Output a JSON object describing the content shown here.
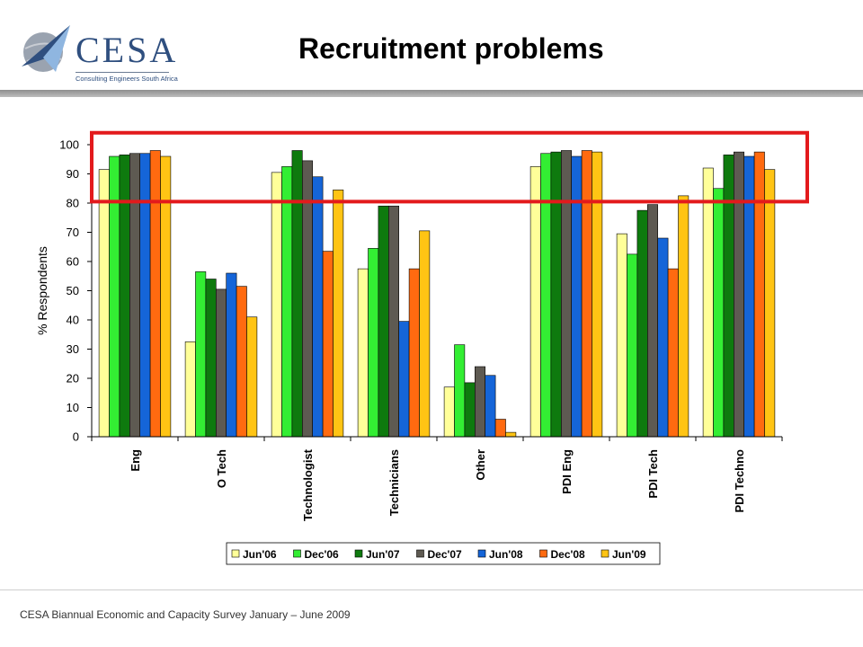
{
  "header": {
    "logo_text": "CESA",
    "logo_subtitle": "Consulting Engineers South Africa",
    "title": "Recruitment problems"
  },
  "footer": {
    "text": "CESA Biannual Economic and Capacity Survey January – June 2009"
  },
  "chart_data": {
    "type": "bar",
    "title": "",
    "xlabel": "",
    "ylabel": "% Respondents",
    "ylim": [
      0,
      100
    ],
    "yticks": [
      0,
      10,
      20,
      30,
      40,
      50,
      60,
      70,
      80,
      90,
      100
    ],
    "grid": false,
    "legend_position": "bottom",
    "categories": [
      "Eng",
      "O Tech",
      "Technologist",
      "Technicians",
      "Other",
      "PDI Eng",
      "PDI Tech",
      "PDI Techno"
    ],
    "series": [
      {
        "name": "Jun'06",
        "color": "#ffff99",
        "values": [
          91.5,
          32.5,
          90.5,
          57.5,
          17,
          92.5,
          69.5,
          92
        ]
      },
      {
        "name": "Dec'06",
        "color": "#33ee33",
        "values": [
          96,
          56.5,
          92.5,
          64.5,
          31.5,
          97,
          62.5,
          85
        ]
      },
      {
        "name": "Jun'07",
        "color": "#0e7a0e",
        "values": [
          96.5,
          54,
          98,
          79,
          18.5,
          97.5,
          77.5,
          96.5
        ]
      },
      {
        "name": "Dec'07",
        "color": "#5e5a52",
        "values": [
          97,
          50.5,
          94.5,
          79,
          24,
          98,
          79.5,
          97.5
        ]
      },
      {
        "name": "Jun'08",
        "color": "#1565d8",
        "values": [
          97,
          56,
          89,
          39.5,
          21,
          96,
          68,
          96
        ]
      },
      {
        "name": "Dec'08",
        "color": "#ff6a10",
        "values": [
          98,
          51.5,
          63.5,
          57.5,
          6,
          98,
          57.5,
          97.5
        ]
      },
      {
        "name": "Jun'09",
        "color": "#ffc414",
        "values": [
          96,
          41,
          84.5,
          70.5,
          1.5,
          97.5,
          82.5,
          91.5
        ]
      }
    ],
    "highlight_box": {
      "color": "#e31a1c",
      "y_from": 80.5,
      "y_to": 101
    }
  }
}
